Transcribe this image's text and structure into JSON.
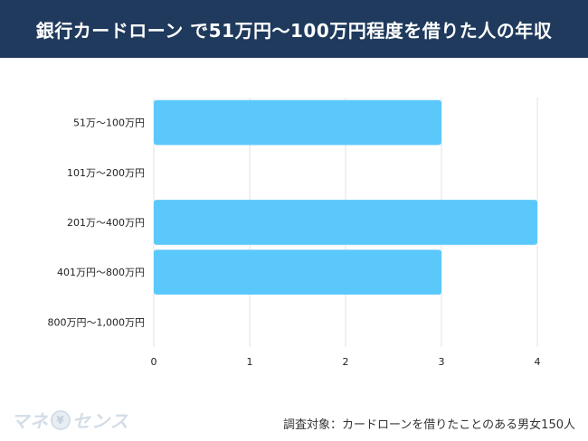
{
  "header": {
    "title": "銀行カードローン で51万円〜100万円程度を借りた人の年収"
  },
  "chart_data": {
    "type": "bar",
    "orientation": "horizontal",
    "categories": [
      "51万〜100万円",
      "101万〜200万円",
      "201万〜400万円",
      "401万円〜800万円",
      "800万円〜1,000万円"
    ],
    "values": [
      3,
      0,
      4,
      3,
      0
    ],
    "xlim": [
      0,
      4
    ],
    "x_ticks": [
      "0",
      "1",
      "2",
      "3",
      "4"
    ],
    "grid": true,
    "bar_color": "#5bc8fb",
    "title": "",
    "xlabel": "",
    "ylabel": ""
  },
  "footer": {
    "logo_text_left": "マネ",
    "logo_coin": "¥",
    "logo_text_right": "センス",
    "note": "調査対象：カードローンを借りたことのある男女150人"
  },
  "colors": {
    "header_bg": "#1f3a5c",
    "grid": "#e3e3e3"
  }
}
